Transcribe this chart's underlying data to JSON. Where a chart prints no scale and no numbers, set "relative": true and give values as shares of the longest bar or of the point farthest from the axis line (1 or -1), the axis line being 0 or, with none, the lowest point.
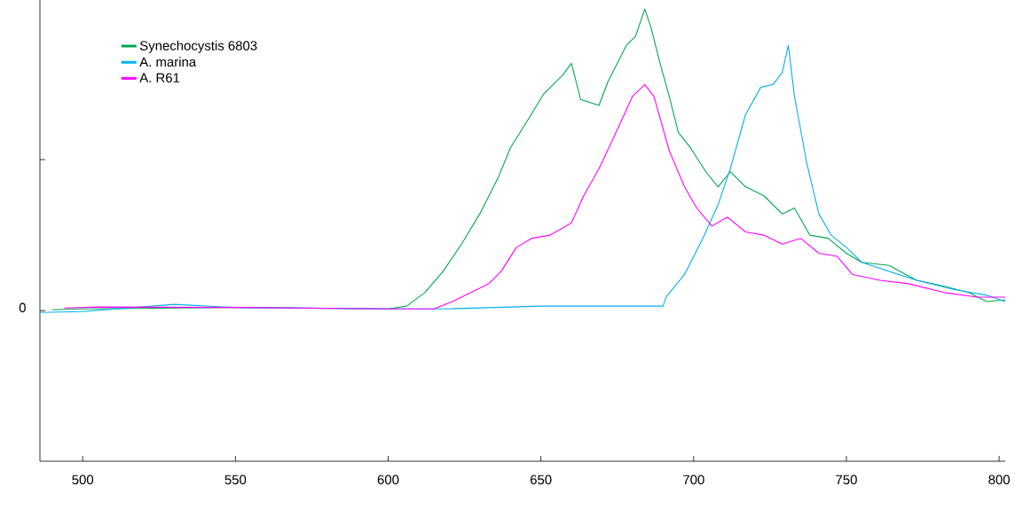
{
  "chart_data": {
    "type": "line",
    "relative": true,
    "xlim": [
      486,
      802
    ],
    "xticks": [
      500,
      550,
      600,
      650,
      700,
      750,
      800
    ],
    "annotations": [
      "0"
    ],
    "legend": "top left",
    "grid": false,
    "series": [
      {
        "name": "Synechocystis 6803",
        "color": "#00a651",
        "x": [
          490,
          500,
          550,
          600,
          606,
          612,
          618,
          624,
          630,
          636,
          640,
          645,
          651,
          657,
          660,
          663,
          669,
          672,
          678,
          681,
          684,
          686,
          689,
          692,
          695,
          699,
          704,
          708,
          712,
          717,
          723,
          729,
          733,
          738,
          744,
          750,
          755,
          764,
          773,
          782,
          790,
          796,
          802
        ],
        "values": [
          0.335,
          0.337,
          0.34,
          0.337,
          0.343,
          0.373,
          0.42,
          0.48,
          0.547,
          0.627,
          0.693,
          0.747,
          0.813,
          0.853,
          0.88,
          0.8,
          0.787,
          0.84,
          0.92,
          0.94,
          1,
          0.96,
          0.88,
          0.807,
          0.727,
          0.693,
          0.64,
          0.607,
          0.64,
          0.607,
          0.587,
          0.547,
          0.56,
          0.5,
          0.493,
          0.46,
          0.44,
          0.433,
          0.4,
          0.387,
          0.373,
          0.353,
          0.357
        ]
      },
      {
        "name": "A. marina",
        "color": "#00b0f0",
        "x": [
          486,
          500,
          530,
          550,
          600,
          620,
          650,
          670,
          690,
          691,
          697,
          703,
          708,
          712,
          717,
          722,
          726,
          729,
          731,
          733,
          737,
          741,
          745,
          750,
          755,
          764,
          773,
          785,
          796,
          802
        ],
        "values": [
          0.329,
          0.331,
          0.347,
          0.34,
          0.337,
          0.337,
          0.343,
          0.343,
          0.343,
          0.363,
          0.413,
          0.493,
          0.567,
          0.647,
          0.767,
          0.827,
          0.833,
          0.86,
          0.92,
          0.807,
          0.66,
          0.547,
          0.5,
          0.473,
          0.44,
          0.42,
          0.4,
          0.38,
          0.367,
          0.353
        ]
      },
      {
        "name": "A. R61",
        "color": "#ff00ff",
        "x": [
          494,
          505,
          550,
          600,
          615,
          621,
          627,
          633,
          637,
          642,
          647,
          653,
          660,
          664,
          669,
          675,
          680,
          684,
          687,
          692,
          697,
          701,
          706,
          711,
          717,
          723,
          729,
          735,
          741,
          747,
          752,
          761,
          770,
          782,
          793,
          802
        ],
        "values": [
          0.339,
          0.341,
          0.34,
          0.337,
          0.337,
          0.353,
          0.373,
          0.393,
          0.42,
          0.473,
          0.493,
          0.5,
          0.527,
          0.587,
          0.647,
          0.733,
          0.807,
          0.833,
          0.807,
          0.687,
          0.607,
          0.56,
          0.52,
          0.54,
          0.507,
          0.5,
          0.48,
          0.493,
          0.46,
          0.453,
          0.413,
          0.4,
          0.393,
          0.373,
          0.363,
          0.363
        ]
      }
    ]
  }
}
